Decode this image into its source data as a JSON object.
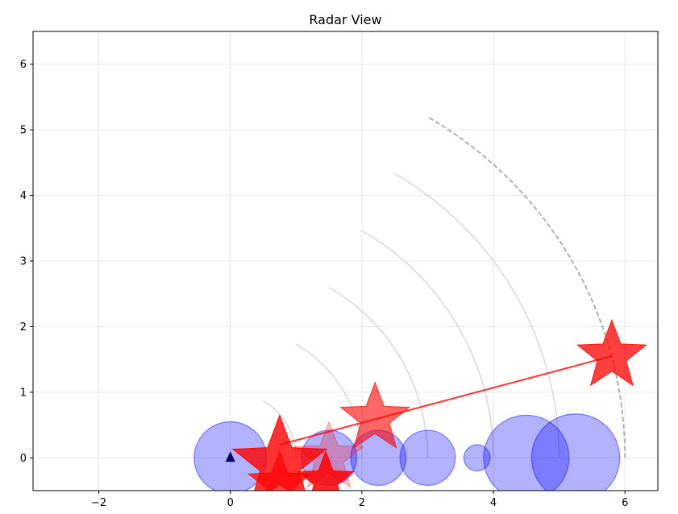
{
  "chart_data": {
    "type": "scatter",
    "title": "Radar View",
    "xlabel": "",
    "ylabel": "",
    "xlim": [
      -3,
      6.5
    ],
    "ylim": [
      -0.5,
      6.5
    ],
    "xticks": [
      -2,
      0,
      2,
      4,
      6
    ],
    "yticks": [
      0,
      1,
      2,
      3,
      4,
      5,
      6
    ],
    "grid": true,
    "legend": "none",
    "colors": {
      "circle_fill": "#0000ff",
      "circle_edge": "#0000ff",
      "star": "#ff0000",
      "track_line": "#ff0000",
      "range_arc": "#dddddd",
      "max_range_arc": "#aaaaaa",
      "origin_marker": "#000066"
    },
    "origin": {
      "x": 0,
      "y": 0,
      "marker": "triangle"
    },
    "range_arcs": [
      {
        "radius": 1.0,
        "theta_deg": [
          0,
          60
        ],
        "style": "solid"
      },
      {
        "radius": 2.0,
        "theta_deg": [
          0,
          60
        ],
        "style": "solid"
      },
      {
        "radius": 3.0,
        "theta_deg": [
          0,
          60
        ],
        "style": "solid"
      },
      {
        "radius": 4.0,
        "theta_deg": [
          0,
          60
        ],
        "style": "solid"
      },
      {
        "radius": 5.0,
        "theta_deg": [
          0,
          60
        ],
        "style": "solid"
      },
      {
        "radius": 6.0,
        "theta_deg": [
          0,
          60
        ],
        "style": "dashed"
      }
    ],
    "circles": [
      {
        "x": 0.0,
        "y": 0.0,
        "r": 0.55
      },
      {
        "x": 1.5,
        "y": 0.0,
        "r": 0.42
      },
      {
        "x": 2.25,
        "y": 0.0,
        "r": 0.42
      },
      {
        "x": 3.0,
        "y": 0.0,
        "r": 0.42
      },
      {
        "x": 3.75,
        "y": 0.0,
        "r": 0.2
      },
      {
        "x": 4.5,
        "y": 0.0,
        "r": 0.65
      },
      {
        "x": 5.25,
        "y": 0.0,
        "r": 0.67
      }
    ],
    "stars": [
      {
        "x": 0.75,
        "y": -0.1,
        "size": 0.75,
        "alpha": 0.8
      },
      {
        "x": 0.75,
        "y": -0.4,
        "size": 0.5,
        "alpha": 0.7
      },
      {
        "x": 1.5,
        "y": 0.0,
        "size": 0.55,
        "alpha": 0.25
      },
      {
        "x": 1.45,
        "y": -0.35,
        "size": 0.45,
        "alpha": 0.85
      },
      {
        "x": 2.2,
        "y": 0.6,
        "size": 0.55,
        "alpha": 0.6
      },
      {
        "x": 5.8,
        "y": 1.55,
        "size": 0.55,
        "alpha": 0.75
      }
    ],
    "track": [
      {
        "x": 0.75,
        "y": 0.2
      },
      {
        "x": 5.8,
        "y": 1.55
      }
    ]
  }
}
